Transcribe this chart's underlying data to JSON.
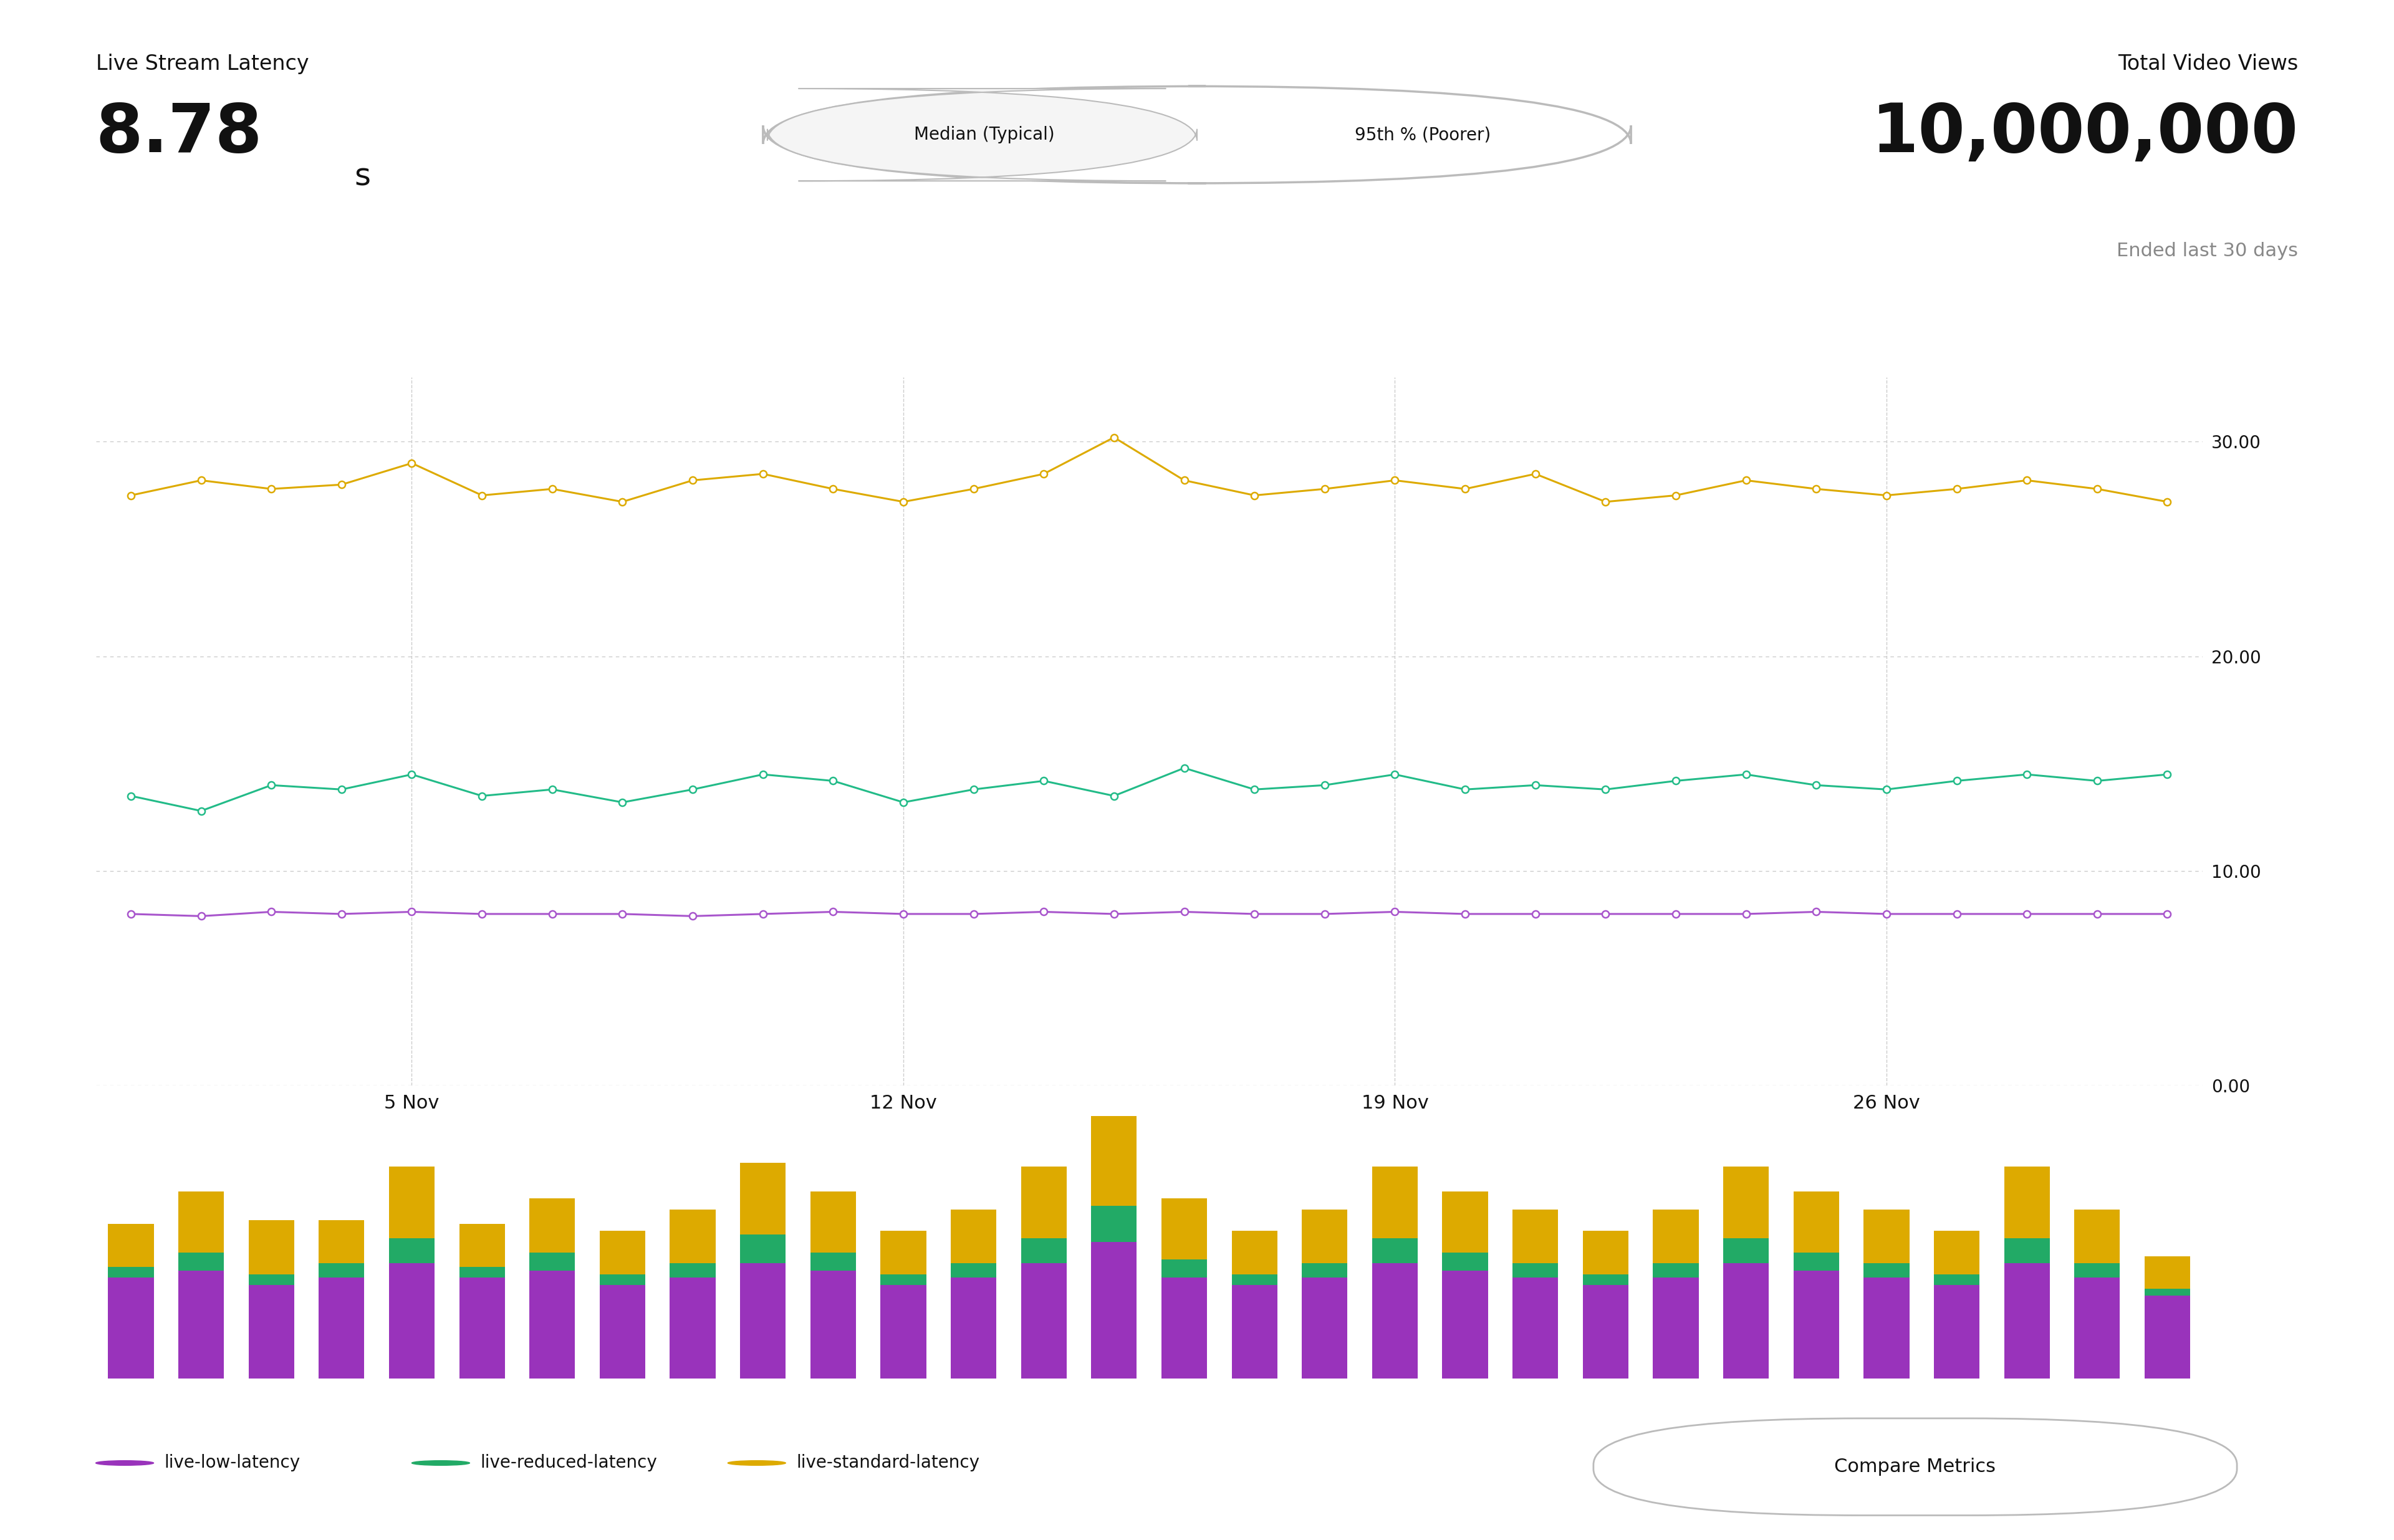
{
  "title_latency": "Live Stream Latency",
  "avg_latency": "8.78",
  "avg_latency_unit": "s",
  "title_views": "Total Video Views",
  "total_views": "10,000,000",
  "views_subtitle": "Ended last 30 days",
  "btn1_text": "Median (Typical)",
  "btn2_text": "95th % (Poorer)",
  "compare_btn": "Compare Metrics",
  "x_labels": [
    "5 Nov",
    "12 Nov",
    "19 Nov",
    "26 Nov"
  ],
  "x_tick_positions": [
    4,
    11,
    18,
    25
  ],
  "bg_color": "#ffffff",
  "grid_color": "#cccccc",
  "text_color_dark": "#111111",
  "text_color_gray": "#888888",
  "purple_color": "#a855cc",
  "green_color": "#22bb88",
  "orange_color": "#ddaa00",
  "purple_color_bar": "#9933bb",
  "green_color_bar": "#22aa66",
  "orange_color_bar": "#ddaa00",
  "y_ticks": [
    0.0,
    10.0,
    20.0,
    30.0
  ],
  "y_max": 33,
  "n_points": 30,
  "low_latency": [
    8.0,
    7.9,
    8.1,
    8.0,
    8.1,
    8.0,
    8.0,
    8.0,
    7.9,
    8.0,
    8.1,
    8.0,
    8.0,
    8.1,
    8.0,
    8.1,
    8.0,
    8.0,
    8.1,
    8.0,
    8.0,
    8.0,
    8.0,
    8.0,
    8.1,
    8.0,
    8.0,
    8.0,
    8.0,
    8.0
  ],
  "reduced_latency": [
    13.5,
    12.8,
    14.0,
    13.8,
    14.5,
    13.5,
    13.8,
    13.2,
    13.8,
    14.5,
    14.2,
    13.2,
    13.8,
    14.2,
    13.5,
    14.8,
    13.8,
    14.0,
    14.5,
    13.8,
    14.0,
    13.8,
    14.2,
    14.5,
    14.0,
    13.8,
    14.2,
    14.5,
    14.2,
    14.5
  ],
  "standard_latency": [
    27.5,
    28.2,
    27.8,
    28.0,
    29.0,
    27.5,
    27.8,
    27.2,
    28.2,
    28.5,
    27.8,
    27.2,
    27.8,
    28.5,
    30.2,
    28.2,
    27.5,
    27.8,
    28.2,
    27.8,
    28.5,
    27.2,
    27.5,
    28.2,
    27.8,
    27.5,
    27.8,
    28.2,
    27.8,
    27.2
  ],
  "bar_purple": [
    2.8,
    3.0,
    2.6,
    2.8,
    3.2,
    2.8,
    3.0,
    2.6,
    2.8,
    3.2,
    3.0,
    2.6,
    2.8,
    3.2,
    3.8,
    2.8,
    2.6,
    2.8,
    3.2,
    3.0,
    2.8,
    2.6,
    2.8,
    3.2,
    3.0,
    2.8,
    2.6,
    3.2,
    2.8,
    2.3
  ],
  "bar_green": [
    0.3,
    0.5,
    0.3,
    0.4,
    0.7,
    0.3,
    0.5,
    0.3,
    0.4,
    0.8,
    0.5,
    0.3,
    0.4,
    0.7,
    1.0,
    0.5,
    0.3,
    0.4,
    0.7,
    0.5,
    0.4,
    0.3,
    0.4,
    0.7,
    0.5,
    0.4,
    0.3,
    0.7,
    0.4,
    0.2
  ],
  "bar_orange": [
    1.2,
    1.7,
    1.5,
    1.2,
    2.0,
    1.2,
    1.5,
    1.2,
    1.5,
    2.0,
    1.7,
    1.2,
    1.5,
    2.0,
    2.5,
    1.7,
    1.2,
    1.5,
    2.0,
    1.7,
    1.5,
    1.2,
    1.5,
    2.0,
    1.7,
    1.5,
    1.2,
    2.0,
    1.5,
    0.9
  ],
  "legend_items": [
    "live-low-latency",
    "live-reduced-latency",
    "live-standard-latency"
  ]
}
